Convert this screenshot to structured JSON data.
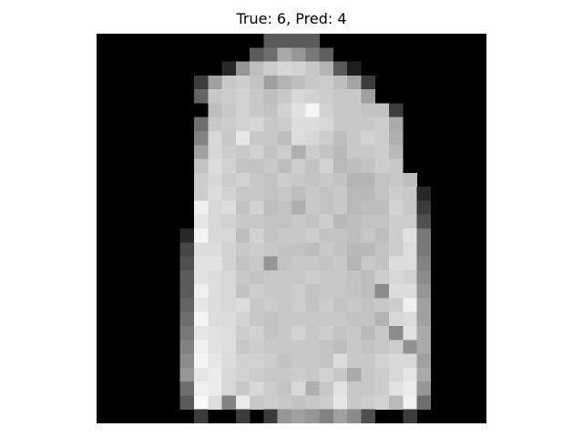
{
  "title": "True: 6, Pred: 4",
  "colors": {
    "background": "#ffffff",
    "colormap": "gray"
  },
  "image": {
    "rows": 28,
    "cols": 28,
    "pixels": [
      [
        0,
        0,
        0,
        0,
        0,
        0,
        0,
        0,
        0,
        0,
        0,
        0,
        90,
        90,
        90,
        90,
        0,
        0,
        0,
        0,
        0,
        0,
        0,
        0,
        0,
        0,
        0,
        0
      ],
      [
        0,
        0,
        0,
        0,
        0,
        0,
        0,
        0,
        0,
        0,
        0,
        90,
        110,
        170,
        150,
        120,
        95,
        0,
        0,
        0,
        0,
        0,
        0,
        0,
        0,
        0,
        0,
        0
      ],
      [
        0,
        0,
        0,
        0,
        0,
        0,
        0,
        0,
        0,
        40,
        150,
        190,
        205,
        215,
        210,
        200,
        180,
        90,
        30,
        0,
        0,
        0,
        0,
        0,
        0,
        0,
        0,
        0
      ],
      [
        0,
        0,
        0,
        0,
        0,
        0,
        0,
        60,
        160,
        200,
        205,
        195,
        160,
        180,
        190,
        200,
        205,
        190,
        165,
        60,
        0,
        0,
        0,
        0,
        0,
        0,
        0,
        0
      ],
      [
        0,
        0,
        0,
        0,
        0,
        0,
        0,
        100,
        200,
        205,
        210,
        200,
        190,
        200,
        215,
        210,
        205,
        200,
        200,
        160,
        0,
        0,
        0,
        0,
        0,
        0,
        0,
        0
      ],
      [
        0,
        0,
        0,
        0,
        0,
        0,
        0,
        0,
        190,
        200,
        210,
        200,
        195,
        210,
        225,
        245,
        210,
        200,
        200,
        195,
        195,
        60,
        0,
        0,
        0,
        0,
        0,
        0,
        0
      ],
      [
        0,
        0,
        0,
        0,
        0,
        0,
        0,
        110,
        200,
        205,
        210,
        215,
        200,
        205,
        220,
        220,
        215,
        200,
        200,
        200,
        205,
        170,
        0,
        0,
        0,
        0,
        0,
        0,
        0
      ],
      [
        0,
        0,
        0,
        0,
        0,
        0,
        0,
        130,
        215,
        200,
        230,
        200,
        200,
        190,
        220,
        215,
        205,
        190,
        200,
        210,
        205,
        175,
        0,
        0,
        0,
        0,
        0,
        0,
        0
      ],
      [
        0,
        0,
        0,
        0,
        0,
        0,
        0,
        160,
        215,
        205,
        200,
        210,
        195,
        205,
        175,
        205,
        195,
        185,
        200,
        200,
        205,
        185,
        0,
        0,
        0,
        0,
        0,
        0,
        0
      ],
      [
        0,
        0,
        0,
        0,
        0,
        0,
        0,
        195,
        220,
        210,
        195,
        195,
        200,
        190,
        205,
        195,
        210,
        185,
        190,
        195,
        205,
        200,
        0,
        0,
        0,
        0,
        0,
        0,
        0
      ],
      [
        0,
        0,
        0,
        0,
        0,
        0,
        0,
        205,
        215,
        205,
        210,
        200,
        195,
        205,
        200,
        195,
        200,
        195,
        180,
        180,
        195,
        200,
        190,
        0,
        0,
        0,
        0,
        0,
        0
      ],
      [
        0,
        0,
        0,
        0,
        0,
        0,
        0,
        205,
        220,
        210,
        200,
        200,
        195,
        200,
        190,
        200,
        195,
        200,
        185,
        185,
        195,
        205,
        200,
        40,
        0,
        0,
        0,
        0,
        0
      ],
      [
        0,
        0,
        0,
        0,
        0,
        0,
        0,
        240,
        215,
        220,
        195,
        210,
        190,
        195,
        175,
        200,
        195,
        200,
        185,
        190,
        190,
        210,
        200,
        60,
        0,
        0,
        0,
        0,
        0
      ],
      [
        0,
        0,
        0,
        0,
        0,
        0,
        0,
        230,
        215,
        210,
        200,
        200,
        195,
        195,
        200,
        195,
        205,
        185,
        190,
        195,
        195,
        205,
        205,
        80,
        0,
        0,
        0,
        0,
        0
      ],
      [
        0,
        0,
        0,
        0,
        0,
        0,
        40,
        245,
        215,
        215,
        190,
        210,
        195,
        200,
        200,
        205,
        195,
        195,
        190,
        200,
        190,
        205,
        225,
        120,
        0,
        0,
        0,
        0,
        0
      ],
      [
        0,
        0,
        0,
        0,
        0,
        0,
        70,
        220,
        220,
        210,
        200,
        205,
        200,
        195,
        195,
        190,
        200,
        195,
        185,
        185,
        195,
        205,
        220,
        120,
        0,
        0,
        0,
        0,
        0
      ],
      [
        0,
        0,
        0,
        0,
        0,
        0,
        80,
        225,
        225,
        210,
        195,
        200,
        150,
        195,
        200,
        200,
        195,
        200,
        180,
        200,
        195,
        220,
        220,
        130,
        0,
        0,
        0,
        0,
        0
      ],
      [
        0,
        0,
        0,
        0,
        0,
        0,
        90,
        225,
        220,
        215,
        200,
        195,
        200,
        200,
        200,
        205,
        200,
        200,
        195,
        190,
        205,
        215,
        210,
        140,
        0,
        0,
        0,
        0,
        0
      ],
      [
        0,
        0,
        0,
        0,
        0,
        0,
        90,
        240,
        220,
        215,
        195,
        205,
        200,
        200,
        205,
        195,
        200,
        200,
        195,
        190,
        140,
        220,
        220,
        150,
        0,
        0,
        0,
        0,
        0
      ],
      [
        0,
        0,
        0,
        0,
        0,
        0,
        100,
        230,
        220,
        215,
        220,
        200,
        205,
        200,
        205,
        195,
        205,
        195,
        200,
        195,
        200,
        205,
        240,
        160,
        0,
        0,
        0,
        0,
        0
      ],
      [
        0,
        0,
        0,
        0,
        0,
        0,
        110,
        245,
        220,
        220,
        210,
        200,
        195,
        200,
        200,
        200,
        200,
        200,
        195,
        195,
        180,
        215,
        220,
        160,
        0,
        0,
        0,
        0,
        0
      ],
      [
        0,
        0,
        0,
        0,
        0,
        0,
        120,
        230,
        225,
        220,
        205,
        210,
        195,
        200,
        210,
        200,
        205,
        195,
        200,
        185,
        200,
        140,
        225,
        170,
        0,
        0,
        0,
        0,
        0
      ],
      [
        0,
        0,
        0,
        0,
        0,
        0,
        130,
        240,
        225,
        220,
        200,
        205,
        200,
        200,
        200,
        200,
        195,
        190,
        200,
        195,
        200,
        205,
        145,
        170,
        0,
        0,
        0,
        0,
        0
      ],
      [
        0,
        0,
        0,
        0,
        0,
        0,
        140,
        245,
        230,
        220,
        210,
        210,
        205,
        195,
        200,
        200,
        195,
        220,
        200,
        200,
        210,
        215,
        215,
        160,
        0,
        0,
        0,
        0,
        0
      ],
      [
        0,
        0,
        0,
        0,
        0,
        0,
        150,
        230,
        235,
        215,
        210,
        205,
        200,
        200,
        205,
        200,
        210,
        200,
        170,
        200,
        205,
        215,
        230,
        170,
        0,
        0,
        0,
        0,
        0
      ],
      [
        0,
        0,
        0,
        0,
        0,
        0,
        110,
        240,
        235,
        215,
        200,
        215,
        205,
        195,
        215,
        175,
        200,
        225,
        200,
        200,
        205,
        225,
        235,
        150,
        0,
        0,
        0,
        0,
        0
      ],
      [
        0,
        0,
        0,
        0,
        0,
        0,
        90,
        250,
        220,
        130,
        235,
        200,
        205,
        200,
        195,
        200,
        205,
        230,
        200,
        205,
        210,
        185,
        240,
        110,
        0,
        0,
        0,
        0,
        0
      ],
      [
        0,
        0,
        0,
        0,
        0,
        0,
        0,
        60,
        0,
        0,
        60,
        0,
        60,
        150,
        160,
        150,
        130,
        160,
        140,
        80,
        0,
        0,
        60,
        0,
        0,
        0,
        0,
        0
      ]
    ]
  }
}
